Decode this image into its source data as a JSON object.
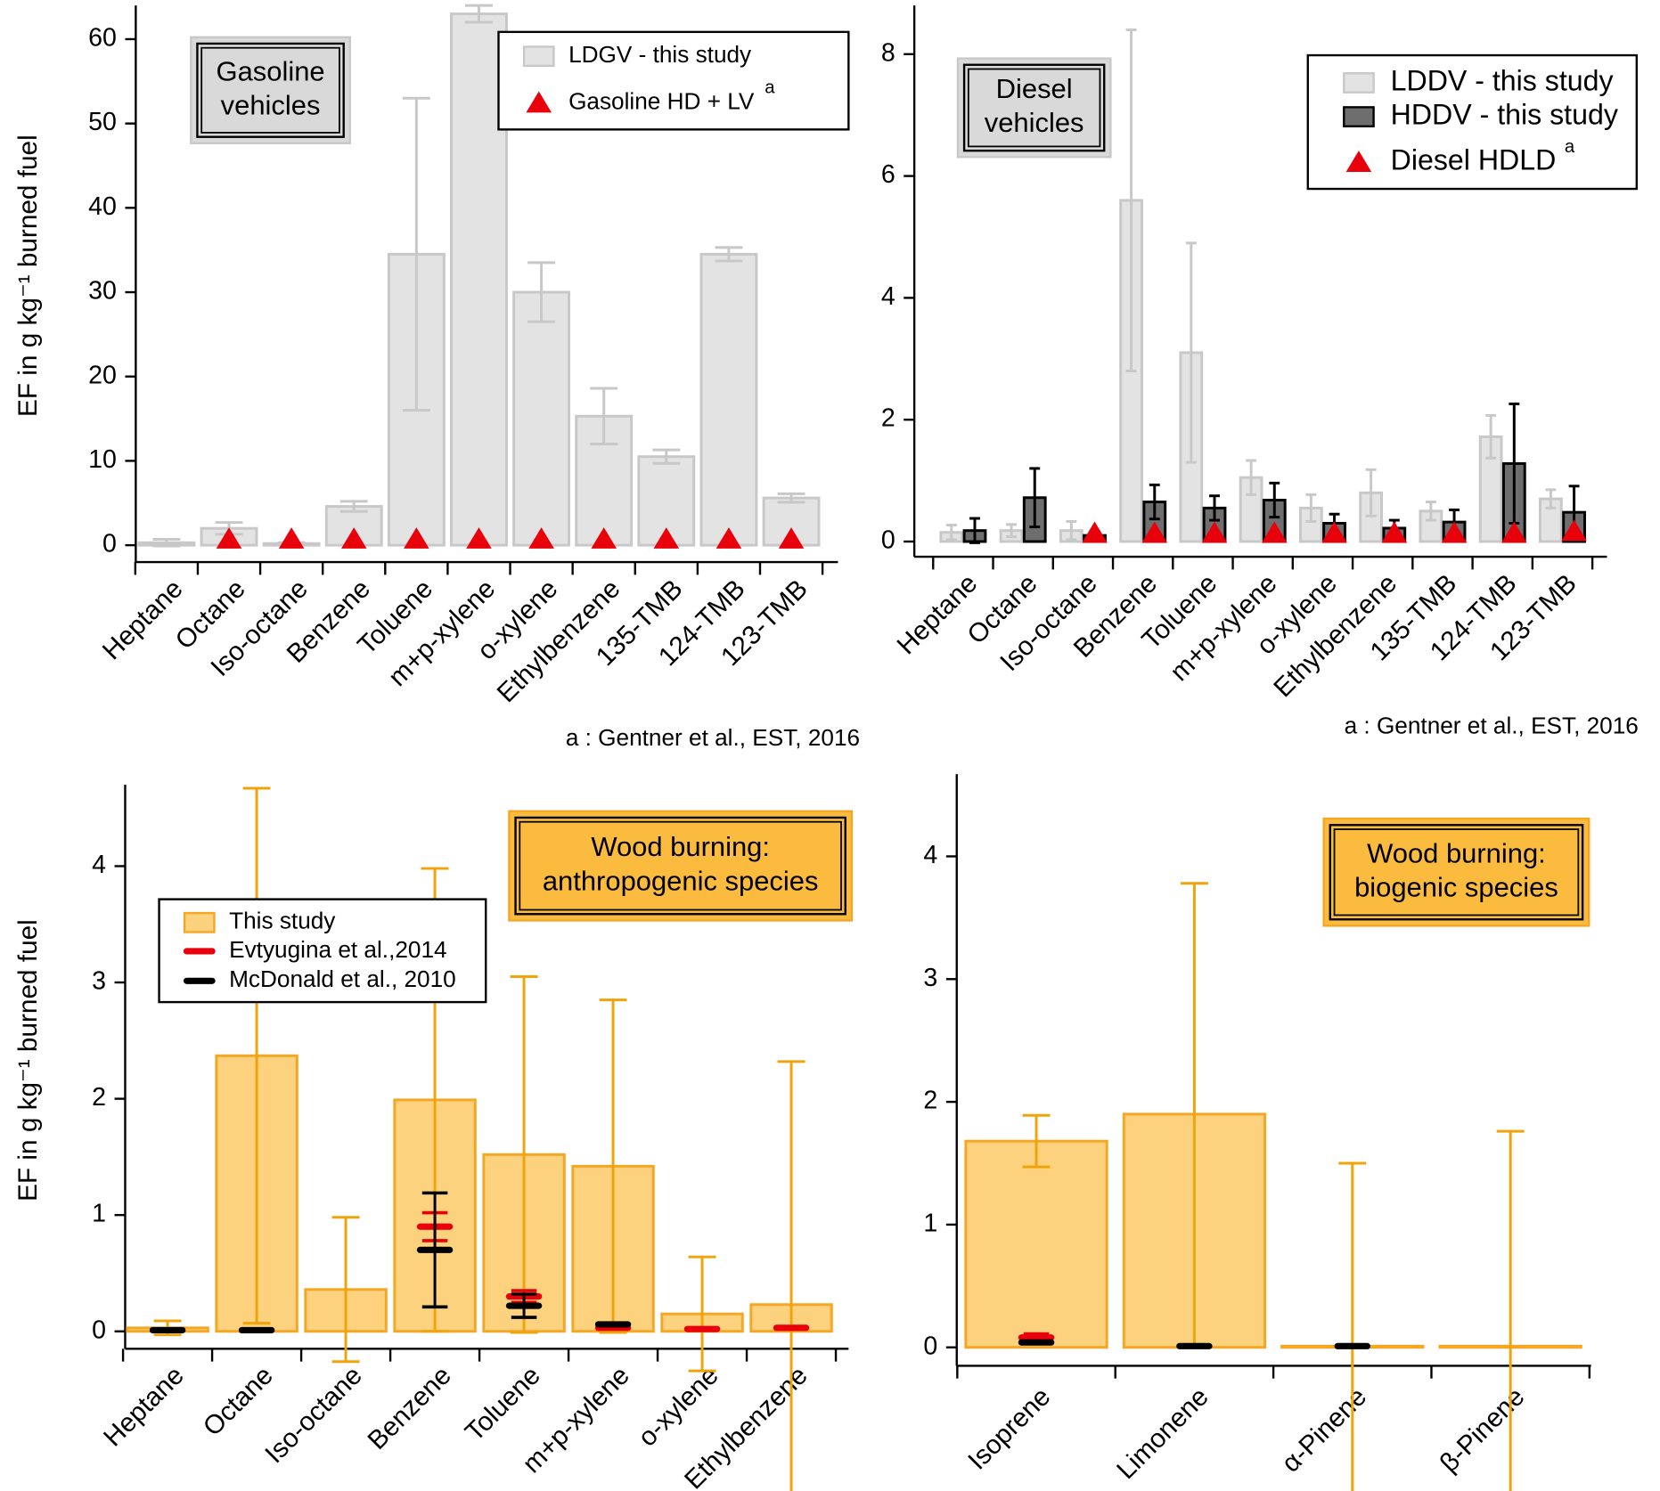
{
  "chart_data": [
    {
      "type": "bar",
      "y_label": "EF in g kg⁻¹ burned fuel",
      "box_label": [
        "Gasoline",
        "vehicles"
      ],
      "note": "a : Gentner et al., EST, 2016",
      "categories": [
        "Heptane",
        "Octane",
        "Iso-octane",
        "Benzene",
        "Toluene",
        "m+p-xylene",
        "o-xylene",
        "Ethylbenzene",
        "135-TMB",
        "124-TMB",
        "123-TMB"
      ],
      "ylim": [
        -2,
        64
      ],
      "yticks": [
        0,
        10,
        20,
        30,
        40,
        50,
        60
      ],
      "series": [
        {
          "name": "LDGV - this study",
          "style": "bar",
          "color": "#e3e3e3",
          "edge_color": "#c8c8c8",
          "values": [
            0.3,
            2,
            0.2,
            4.6,
            34.5,
            63,
            30,
            15.3,
            10.5,
            34.5,
            5.6
          ],
          "errors": [
            0.4,
            0.7,
            0.1,
            0.6,
            18.5,
            1,
            3.5,
            3.3,
            0.8,
            0.8,
            0.5
          ]
        },
        {
          "name": "Gasoline HD + LV",
          "superscript": "a",
          "style": "triangle",
          "color": "#e8000b",
          "values": [
            null,
            0.1,
            0.1,
            0.1,
            0.1,
            0.1,
            0.1,
            0.1,
            0.1,
            0.1,
            0.1
          ]
        }
      ]
    },
    {
      "type": "bar",
      "box_label": [
        "Diesel",
        "vehicles"
      ],
      "note": "a : Gentner et al., EST, 2016",
      "categories": [
        "Heptane",
        "Octane",
        "Iso-octane",
        "Benzene",
        "Toluene",
        "m+p-xylene",
        "o-xylene",
        "Ethylbenzene",
        "135-TMB",
        "124-TMB",
        "123-TMB"
      ],
      "ylim": [
        -0.25,
        8.8
      ],
      "yticks": [
        0,
        2,
        4,
        6,
        8
      ],
      "series": [
        {
          "name": "LDDV - this study",
          "style": "bar",
          "color": "#e3e3e3",
          "edge_color": "#c8c8c8",
          "values": [
            0.15,
            0.18,
            0.18,
            5.6,
            3.1,
            1.05,
            0.55,
            0.8,
            0.5,
            1.72,
            0.7
          ],
          "errors": [
            0.12,
            0.1,
            0.15,
            2.8,
            1.8,
            0.28,
            0.22,
            0.38,
            0.15,
            0.35,
            0.15
          ]
        },
        {
          "name": "HDDV - this study",
          "style": "bar",
          "color": "#6e6e6e",
          "edge_color": "#000000",
          "values": [
            0.18,
            0.72,
            0.1,
            0.65,
            0.55,
            0.68,
            0.3,
            0.22,
            0.32,
            1.28,
            0.48
          ],
          "errors": [
            0.2,
            0.48,
            0.07,
            0.28,
            0.2,
            0.28,
            0.15,
            0.13,
            0.2,
            0.98,
            0.43
          ]
        },
        {
          "name": "Diesel HDLD",
          "superscript": "a",
          "style": "triangle",
          "color": "#e8000b",
          "values": [
            null,
            null,
            0.05,
            0.05,
            0.05,
            0.05,
            0.05,
            0.05,
            0.05,
            0.05,
            0.08
          ]
        }
      ]
    },
    {
      "type": "bar",
      "y_label": "EF in g kg⁻¹ burned fuel",
      "box_label": [
        "Wood burning:",
        "anthropogenic species"
      ],
      "categories": [
        "Heptane",
        "Octane",
        "Iso-octane",
        "Benzene",
        "Toluene",
        "m+p-xylene",
        "o-xylene",
        "Ethylbenzene"
      ],
      "ylim": [
        -0.15,
        4.7
      ],
      "yticks": [
        0,
        1,
        2,
        3,
        4
      ],
      "series": [
        {
          "name": "This study",
          "style": "bar",
          "color": "#fdd27e",
          "edge_color": "#f5a623",
          "values": [
            0.03,
            2.37,
            0.36,
            1.99,
            1.52,
            1.42,
            0.15,
            0.23
          ],
          "errors": [
            0.06,
            2.3,
            0.62,
            1.99,
            1.53,
            1.43,
            0.49,
            2.09
          ]
        },
        {
          "name": "Evtyugina et al.,2014",
          "style": "dash",
          "color": "#e8000b",
          "values": [
            null,
            null,
            null,
            0.9,
            0.3,
            0.03,
            0.02,
            0.03
          ],
          "errors": [
            null,
            null,
            null,
            0.12,
            0.05,
            null,
            null,
            null
          ]
        },
        {
          "name": "McDonald et al., 2010",
          "style": "dash",
          "color": "#000000",
          "values": [
            0.01,
            0.01,
            null,
            0.7,
            0.22,
            0.06,
            null,
            null
          ],
          "errors": [
            null,
            null,
            null,
            0.49,
            0.1,
            null,
            null,
            null
          ]
        }
      ]
    },
    {
      "type": "bar",
      "box_label": [
        "Wood burning:",
        "biogenic species"
      ],
      "categories": [
        "Isoprene",
        "Limonene",
        "α-Pinene",
        "β-Pinene"
      ],
      "ylim": [
        -0.15,
        4.67
      ],
      "yticks": [
        0,
        1,
        2,
        3,
        4
      ],
      "series": [
        {
          "style": "bar",
          "color": "#fdd27e",
          "edge_color": "#f5a623",
          "values": [
            1.68,
            1.9,
            0.01,
            0.01
          ],
          "errors": [
            0.21,
            1.88,
            1.49,
            1.75
          ]
        },
        {
          "style": "dash",
          "color": "#e8000b",
          "values": [
            0.08,
            null,
            null,
            null
          ],
          "errors": [
            0.03,
            null,
            null,
            null
          ]
        },
        {
          "style": "dash",
          "color": "#000000",
          "values": [
            0.04,
            0.01,
            0.01,
            null
          ],
          "errors": [
            null,
            null,
            null,
            null
          ]
        }
      ]
    }
  ]
}
